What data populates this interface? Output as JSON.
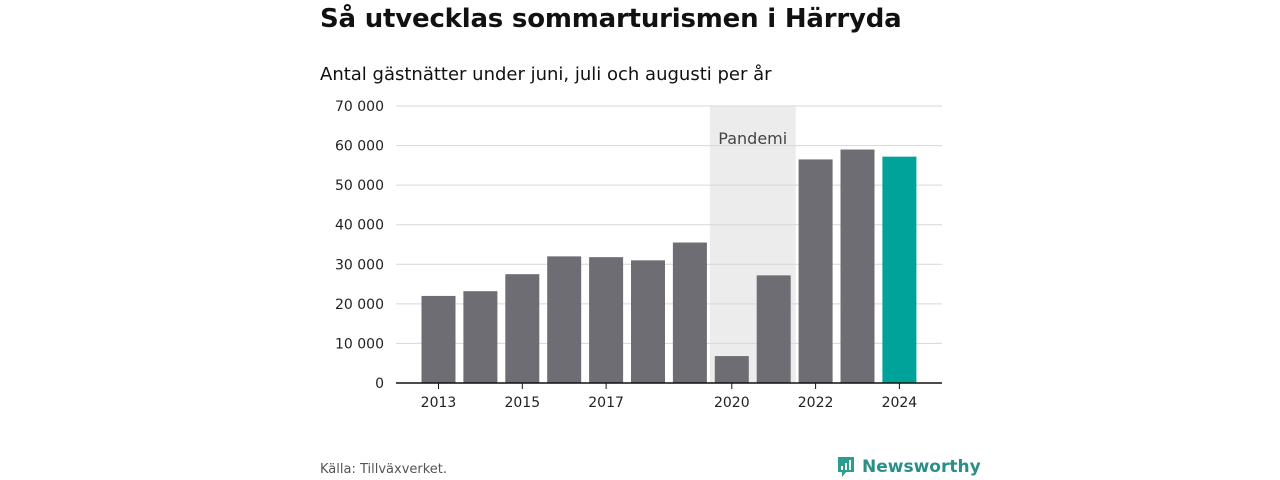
{
  "header": {
    "title": "Så utvecklas sommarturismen i Härryda",
    "subtitle": "Antal gästnätter under juni, juli och augusti per år"
  },
  "footer": {
    "source": "Källa: Tillväxverket.",
    "brand": "Newsworthy",
    "brand_icon": "newsworthy-logo-icon",
    "brand_color": "#2a9d8f"
  },
  "chart_data": {
    "type": "bar",
    "title": "Så utvecklas sommarturismen i Härryda",
    "subtitle": "Antal gästnätter under juni, juli och augusti per år",
    "xlabel": "",
    "ylabel": "",
    "categories": [
      "2013",
      "2014",
      "2015",
      "2016",
      "2017",
      "2018",
      "2019",
      "2020",
      "2021",
      "2022",
      "2023",
      "2024"
    ],
    "values": [
      22000,
      23200,
      27500,
      32000,
      31800,
      31000,
      35500,
      6800,
      27200,
      56500,
      59000,
      57200
    ],
    "x_tick_labels": [
      "2013",
      "2015",
      "2017",
      "2020",
      "2022",
      "2024"
    ],
    "ylim": [
      0,
      70000
    ],
    "y_ticks": [
      0,
      10000,
      20000,
      30000,
      40000,
      50000,
      60000,
      70000
    ],
    "y_tick_labels": [
      "0",
      "10 000",
      "20 000",
      "30 000",
      "40 000",
      "50 000",
      "60 000",
      "70 000"
    ],
    "grid": true,
    "colors": {
      "default": "#6e6d73",
      "highlight": "#00a39a",
      "band": "#ececec"
    },
    "highlight_category": "2024",
    "annotation": {
      "label": "Pandemi",
      "from": "2020",
      "to": "2021"
    }
  }
}
